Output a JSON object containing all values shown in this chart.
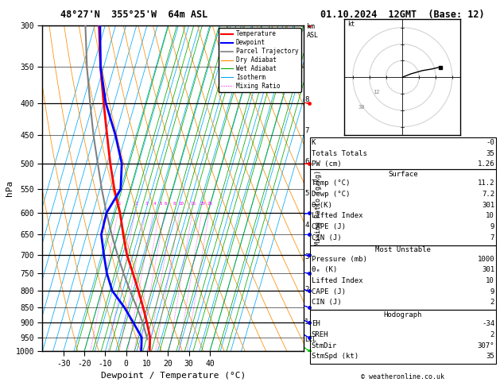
{
  "title_left": "48°27'N  355°25'W  64m ASL",
  "title_right": "01.10.2024  12GMT  (Base: 12)",
  "xlabel": "Dewpoint / Temperature (°C)",
  "ylabel_left": "hPa",
  "pressure_levels": [
    300,
    350,
    400,
    450,
    500,
    550,
    600,
    650,
    700,
    750,
    800,
    850,
    900,
    950,
    1000
  ],
  "pressure_major": [
    300,
    400,
    500,
    600,
    700,
    800,
    900,
    1000
  ],
  "temp_ticks": [
    -30,
    -20,
    -10,
    0,
    10,
    20,
    30,
    40
  ],
  "km_labels": [
    1,
    2,
    3,
    4,
    5,
    6,
    7,
    8
  ],
  "km_pressures": [
    899,
    796,
    706,
    628,
    559,
    497,
    443,
    395
  ],
  "lcl_pressure": 957,
  "mixing_ratio_values": [
    1,
    2,
    3,
    4,
    5,
    6,
    8,
    10,
    15,
    20,
    25
  ],
  "temp_profile_p": [
    1000,
    950,
    900,
    850,
    800,
    750,
    700,
    650,
    600,
    550,
    500,
    450,
    400,
    350,
    300
  ],
  "temp_profile_t": [
    11.2,
    9.5,
    6.0,
    2.0,
    -2.5,
    -7.5,
    -13.0,
    -17.5,
    -22.0,
    -28.0,
    -33.5,
    -39.0,
    -45.0,
    -51.5,
    -58.0
  ],
  "dewp_profile_p": [
    1000,
    950,
    900,
    850,
    800,
    750,
    700,
    650,
    600,
    550,
    500,
    450,
    400,
    350,
    300
  ],
  "dewp_profile_t": [
    7.2,
    5.5,
    -0.5,
    -7.0,
    -15.0,
    -20.0,
    -24.0,
    -28.0,
    -28.5,
    -25.0,
    -28.0,
    -35.0,
    -44.0,
    -51.5,
    -57.5
  ],
  "parcel_profile_p": [
    957,
    900,
    850,
    800,
    750,
    700,
    650,
    600,
    550,
    500,
    450,
    400,
    350,
    300
  ],
  "parcel_profile_t": [
    8.5,
    4.0,
    -1.0,
    -6.5,
    -12.0,
    -17.5,
    -23.0,
    -28.5,
    -34.0,
    -39.5,
    -45.5,
    -51.5,
    -58.0,
    -64.5
  ],
  "color_temp": "#ff0000",
  "color_dewp": "#0000ff",
  "color_parcel": "#808080",
  "color_dry_adiabat": "#ff8c00",
  "color_wet_adiabat": "#00aa00",
  "color_isotherm": "#00aaff",
  "color_mixing": "#ff00ff",
  "info_K": "-0",
  "info_TT": "35",
  "info_PW": "1.26",
  "info_surf_temp": "11.2",
  "info_surf_dewp": "7.2",
  "info_surf_theta": "301",
  "info_surf_li": "10",
  "info_surf_cape": "9",
  "info_surf_cin": "7",
  "info_mu_pres": "1000",
  "info_mu_theta": "301",
  "info_mu_li": "10",
  "info_mu_cape": "9",
  "info_mu_cin": "2",
  "info_eh": "-34",
  "info_sreh": "2",
  "info_stmdir": "307°",
  "info_stmspd": "35",
  "copyright": "© weatheronline.co.uk",
  "wind_data": [
    {
      "p": 1000,
      "wd": 307,
      "ws": 35,
      "color": "#00cc00"
    },
    {
      "p": 950,
      "wd": 300,
      "ws": 30,
      "color": "#0000ff"
    },
    {
      "p": 900,
      "wd": 295,
      "ws": 25,
      "color": "#0000ff"
    },
    {
      "p": 850,
      "wd": 290,
      "ws": 20,
      "color": "#0000ff"
    },
    {
      "p": 800,
      "wd": 285,
      "ws": 18,
      "color": "#0000ff"
    },
    {
      "p": 750,
      "wd": 280,
      "ws": 15,
      "color": "#0000ff"
    },
    {
      "p": 700,
      "wd": 275,
      "ws": 20,
      "color": "#0000ff"
    },
    {
      "p": 650,
      "wd": 270,
      "ws": 25,
      "color": "#0000ff"
    },
    {
      "p": 600,
      "wd": 265,
      "ws": 30,
      "color": "#0000ff"
    },
    {
      "p": 500,
      "wd": 275,
      "ws": 35,
      "color": "#ff0000"
    },
    {
      "p": 400,
      "wd": 280,
      "ws": 40,
      "color": "#ff0000"
    },
    {
      "p": 300,
      "wd": 285,
      "ws": 50,
      "color": "#ff0000"
    }
  ]
}
